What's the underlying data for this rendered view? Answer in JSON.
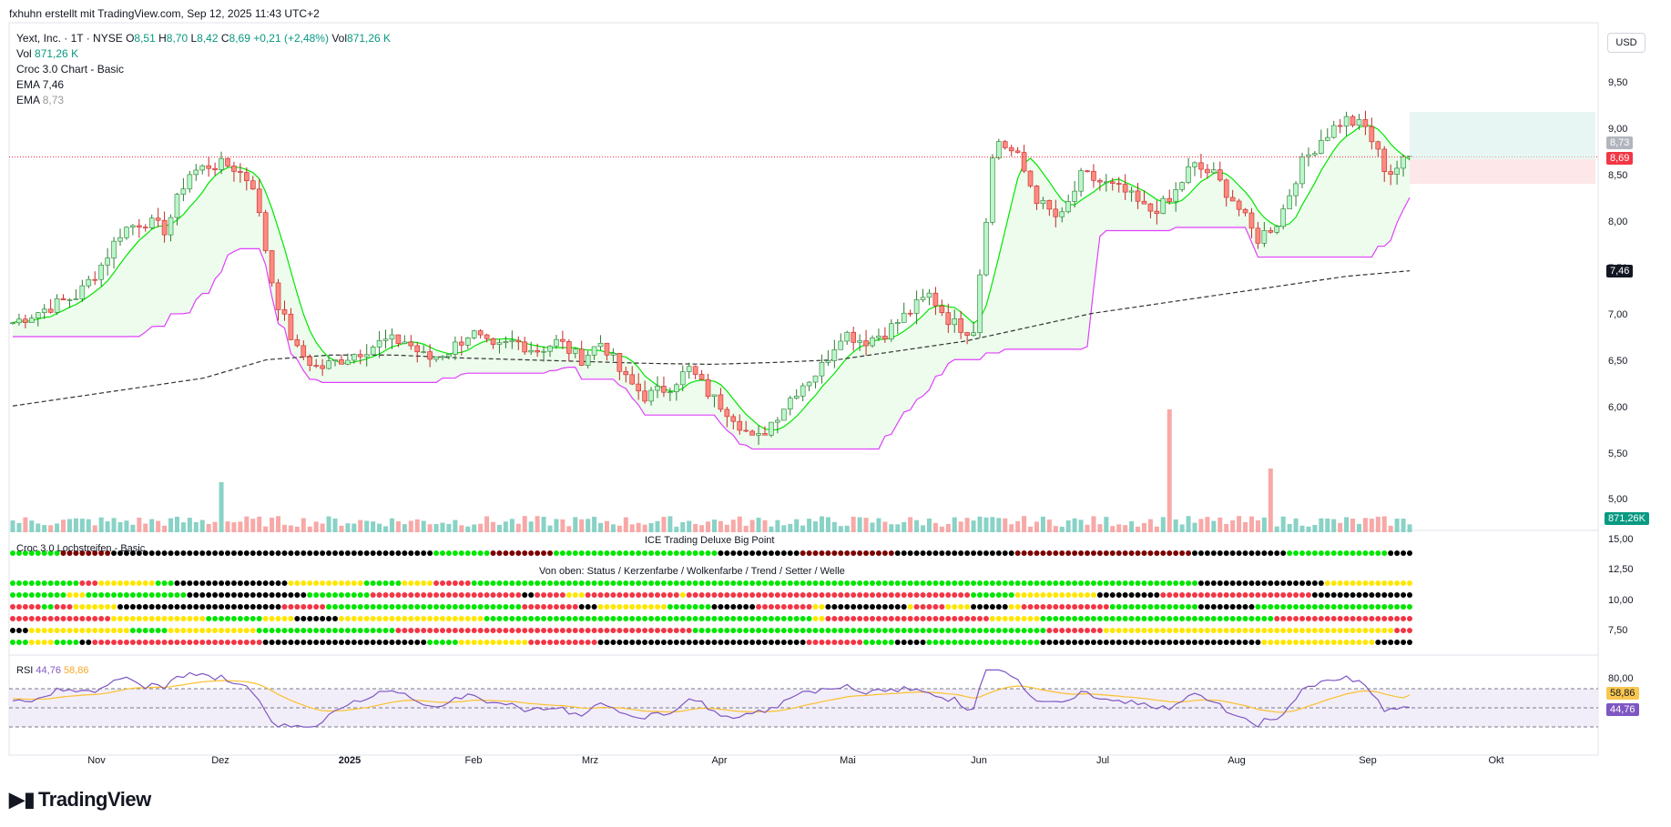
{
  "header": {
    "author": "fxhuhn erstellt mit TradingView.com, Sep 12, 2025 11:43 UTC+2",
    "symbol": "Yext, Inc. · 1T · NYSE",
    "o_label": "O",
    "o_value": "8,51",
    "h_label": "H",
    "h_value": "8,70",
    "l_label": "L",
    "l_value": "8,42",
    "c_label": "C",
    "c_value": "8,69",
    "change": "+0,21 (+2,48%)",
    "vol_label": "Vol",
    "vol_value": "871,26 K",
    "vol2_label": "Vol",
    "vol2_value": "871,26 K",
    "croc_label": "Croc 3.0 Chart - Basic",
    "ema1_label": "EMA",
    "ema1_value": "7,46",
    "ema2_label": "EMA",
    "ema2_value": "8,73"
  },
  "currency": "USD",
  "price_tags": {
    "ema_fast": "8,73",
    "last": "8,69",
    "ema_slow": "7,46",
    "volume": "871,26K"
  },
  "panes": {
    "croc_title": "Croc 3.0 Lochstreifen - Basic",
    "ice_title": "ICE Trading Deluxe Big Point",
    "rows_title": "Von oben: Status / Kerzenfarbe / Wolkenfarbe / Trend / Setter / Welle",
    "rsi_label": "RSI",
    "rsi_value": "44,76",
    "rsi_ma_value": "58,86"
  },
  "colors": {
    "up": "#089981",
    "down": "#f23645",
    "cloud_green": "#00e600",
    "cloud_magenta": "#e040fb",
    "ema_dash": "#333333",
    "rsi_line": "#7e57c2",
    "rsi_ma": "#fbc02d"
  },
  "branding": "TradingView",
  "chart_data": {
    "type": "candlestick",
    "x_labels": [
      "Nov",
      "Dez",
      "2025",
      "Feb",
      "Mrz",
      "Apr",
      "Mai",
      "Jun",
      "Jul",
      "Aug",
      "Sep",
      "Okt"
    ],
    "price_axis": [
      "9,50",
      "9,00",
      "8,50",
      "8,00",
      "7,50",
      "7,00",
      "6,50",
      "6,00",
      "5,50",
      "5,00"
    ],
    "indicator_axis": [
      "15,00",
      "12,50",
      "10,00",
      "7,50"
    ],
    "rsi_axis": [
      "80,00"
    ],
    "price_range": [
      4.9,
      9.8
    ],
    "close_path": [
      6.9,
      7.0,
      7.1,
      7.2,
      7.5,
      7.9,
      8.0,
      7.9,
      8.5,
      8.6,
      8.6,
      8.4,
      7.2,
      6.6,
      6.4,
      6.5,
      6.6,
      6.7,
      6.7,
      6.5,
      6.6,
      6.8,
      6.6,
      6.7,
      6.6,
      6.7,
      6.5,
      6.7,
      6.3,
      6.1,
      6.2,
      6.4,
      6.1,
      5.9,
      5.6,
      5.9,
      6.2,
      6.4,
      6.8,
      6.7,
      6.8,
      7.0,
      7.2,
      6.9,
      6.8,
      8.9,
      8.7,
      8.2,
      8.0,
      8.5,
      8.4,
      8.3,
      8.1,
      8.2,
      8.6,
      8.5,
      8.2,
      7.8,
      8.0,
      8.6,
      8.9,
      9.1,
      9.0,
      8.5,
      8.69
    ],
    "ema_slow_path": [
      6.0,
      6.1,
      6.2,
      6.3,
      6.5,
      6.55,
      6.55,
      6.52,
      6.5,
      6.48,
      6.46,
      6.45,
      6.47,
      6.5,
      6.6,
      6.7,
      6.85,
      7.0,
      7.1,
      7.2,
      7.3,
      7.4,
      7.46
    ],
    "rsi_last": 44.76,
    "rsi_ma_last": 58.86,
    "volume_last": "871,26K",
    "xlabel": "",
    "ylabel": ""
  }
}
